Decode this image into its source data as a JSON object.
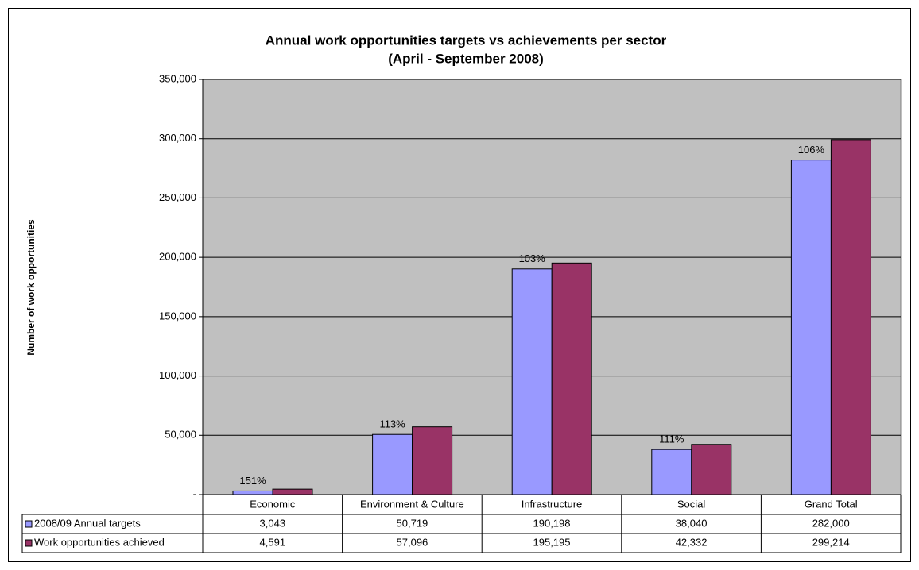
{
  "chart_data": {
    "type": "bar",
    "title": "Annual work opportunities targets vs achievements per sector",
    "subtitle": "(April - September 2008)",
    "y_label": "Number of work opportunities",
    "categories": [
      "Economic",
      "Environment & Culture",
      "Infrastructure",
      "Social",
      "Grand Total"
    ],
    "series": [
      {
        "name": "2008/09 Annual targets",
        "color": "#9999ff",
        "values": [
          3043,
          50719,
          190198,
          38040,
          282000
        ],
        "value_labels": [
          "3,043",
          "50,719",
          "190,198",
          "38,040",
          "282,000"
        ]
      },
      {
        "name": "Work opportunities achieved",
        "color": "#993366",
        "values": [
          4591,
          57096,
          195195,
          42332,
          299214
        ],
        "value_labels": [
          "4,591",
          "57,096",
          "195,195",
          "42,332",
          "299,214"
        ]
      }
    ],
    "percent_labels": [
      "151%",
      "113%",
      "103%",
      "111%",
      "106%"
    ],
    "ylim": [
      0,
      350000
    ],
    "yticks": [
      {
        "value": 0,
        "label": "-"
      },
      {
        "value": 50000,
        "label": "50,000"
      },
      {
        "value": 100000,
        "label": "100,000"
      },
      {
        "value": 150000,
        "label": "150,000"
      },
      {
        "value": 200000,
        "label": "200,000"
      },
      {
        "value": 250000,
        "label": "250,000"
      },
      {
        "value": 300000,
        "label": "300,000"
      },
      {
        "value": 350000,
        "label": "350,000"
      }
    ],
    "grid": true,
    "plot_background": "#c0c0c0"
  }
}
